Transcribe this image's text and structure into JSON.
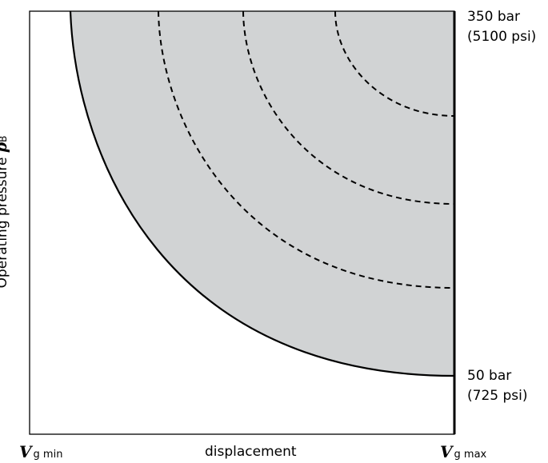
{
  "diagram": {
    "top_pressure": {
      "line1": "350 bar",
      "line2": "(5100 psi)"
    },
    "bottom_pressure": {
      "line1": "50 bar",
      "line2": "(725 psi)"
    },
    "y_axis_label": {
      "text": "Operating pressure ",
      "symbol": "p",
      "subscript": "B"
    },
    "x_axis_label": "displacement",
    "x_min_label": {
      "symbol": "V",
      "subscript": "g min"
    },
    "x_max_label": {
      "symbol": "V",
      "subscript": "g max"
    },
    "colors": {
      "fill": "#d1d3d4",
      "line": "#000000"
    }
  }
}
